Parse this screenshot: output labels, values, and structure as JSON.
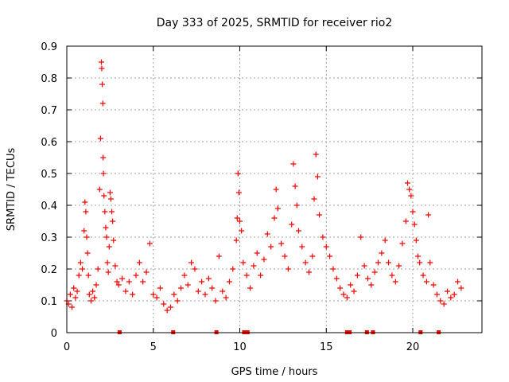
{
  "chart_data": {
    "type": "scatter",
    "title": "Day 333 of 2025, SRMTID for receiver rio2",
    "xlabel": "GPS time / hours",
    "ylabel": "SRMTID / TECUs",
    "xlim": [
      0,
      24
    ],
    "ylim": [
      0,
      0.9
    ],
    "grid": true,
    "marker": "+",
    "color": "#ff0000",
    "x_ticks": [
      "0",
      "5",
      "10",
      "15",
      "20"
    ],
    "y_ticks": [
      "0",
      "0.1",
      "0.2",
      "0.3",
      "0.4",
      "0.5",
      "0.6",
      "0.7",
      "0.8",
      "0.9"
    ],
    "baseline_markers_x": [
      3.05,
      6.15,
      8.65,
      10.25,
      10.45,
      16.2,
      16.35,
      17.35,
      17.7,
      20.45,
      21.5
    ],
    "series": [
      {
        "name": "SRMTID",
        "x": [
          0.0,
          0.1,
          0.2,
          0.3,
          0.4,
          0.5,
          0.6,
          0.7,
          0.8,
          0.9,
          1.0,
          1.05,
          1.1,
          1.15,
          1.2,
          1.25,
          1.3,
          1.4,
          1.5,
          1.6,
          1.7,
          1.8,
          1.9,
          1.95,
          2.0,
          2.02,
          2.05,
          2.08,
          2.1,
          2.12,
          2.15,
          2.2,
          2.25,
          2.3,
          2.35,
          2.4,
          2.45,
          2.5,
          2.55,
          2.6,
          2.65,
          2.7,
          2.8,
          2.9,
          3.0,
          3.2,
          3.4,
          3.6,
          3.8,
          4.0,
          4.2,
          4.4,
          4.6,
          4.8,
          5.0,
          5.2,
          5.4,
          5.6,
          5.8,
          6.0,
          6.2,
          6.4,
          6.6,
          6.8,
          7.0,
          7.2,
          7.4,
          7.6,
          7.8,
          8.0,
          8.2,
          8.4,
          8.6,
          8.8,
          9.0,
          9.2,
          9.4,
          9.6,
          9.8,
          9.85,
          9.9,
          9.95,
          10.0,
          10.1,
          10.2,
          10.4,
          10.6,
          10.8,
          11.0,
          11.2,
          11.4,
          11.6,
          11.8,
          12.0,
          12.1,
          12.2,
          12.4,
          12.6,
          12.8,
          13.0,
          13.1,
          13.2,
          13.3,
          13.4,
          13.6,
          13.8,
          14.0,
          14.2,
          14.3,
          14.4,
          14.5,
          14.6,
          14.8,
          15.0,
          15.2,
          15.4,
          15.6,
          15.8,
          16.0,
          16.2,
          16.4,
          16.6,
          16.8,
          17.0,
          17.2,
          17.4,
          17.6,
          17.8,
          18.0,
          18.2,
          18.4,
          18.6,
          18.8,
          19.0,
          19.2,
          19.4,
          19.6,
          19.7,
          19.8,
          19.9,
          20.0,
          20.1,
          20.2,
          20.3,
          20.4,
          20.6,
          20.8,
          20.9,
          21.0,
          21.2,
          21.4,
          21.6,
          21.8,
          22.0,
          22.2,
          22.4,
          22.6,
          22.8
        ],
        "y": [
          0.1,
          0.09,
          0.12,
          0.08,
          0.14,
          0.11,
          0.13,
          0.18,
          0.22,
          0.2,
          0.32,
          0.41,
          0.38,
          0.3,
          0.25,
          0.18,
          0.12,
          0.1,
          0.13,
          0.11,
          0.15,
          0.2,
          0.45,
          0.61,
          0.85,
          0.83,
          0.78,
          0.72,
          0.55,
          0.5,
          0.43,
          0.38,
          0.33,
          0.3,
          0.22,
          0.19,
          0.27,
          0.44,
          0.42,
          0.38,
          0.35,
          0.29,
          0.21,
          0.16,
          0.15,
          0.17,
          0.13,
          0.16,
          0.12,
          0.18,
          0.22,
          0.16,
          0.19,
          0.28,
          0.12,
          0.11,
          0.14,
          0.09,
          0.07,
          0.08,
          0.12,
          0.1,
          0.14,
          0.18,
          0.15,
          0.22,
          0.2,
          0.13,
          0.16,
          0.12,
          0.17,
          0.14,
          0.1,
          0.24,
          0.13,
          0.11,
          0.16,
          0.2,
          0.29,
          0.36,
          0.5,
          0.44,
          0.35,
          0.32,
          0.22,
          0.18,
          0.14,
          0.21,
          0.25,
          0.18,
          0.23,
          0.31,
          0.27,
          0.36,
          0.45,
          0.39,
          0.28,
          0.24,
          0.2,
          0.34,
          0.53,
          0.46,
          0.4,
          0.32,
          0.27,
          0.22,
          0.19,
          0.24,
          0.42,
          0.56,
          0.49,
          0.37,
          0.3,
          0.27,
          0.24,
          0.2,
          0.17,
          0.14,
          0.12,
          0.11,
          0.15,
          0.13,
          0.18,
          0.3,
          0.21,
          0.17,
          0.15,
          0.19,
          0.22,
          0.25,
          0.29,
          0.22,
          0.18,
          0.16,
          0.21,
          0.28,
          0.35,
          0.47,
          0.45,
          0.43,
          0.38,
          0.34,
          0.29,
          0.24,
          0.22,
          0.18,
          0.16,
          0.37,
          0.22,
          0.15,
          0.12,
          0.1,
          0.09,
          0.13,
          0.11,
          0.12,
          0.16,
          0.14
        ]
      }
    ]
  }
}
